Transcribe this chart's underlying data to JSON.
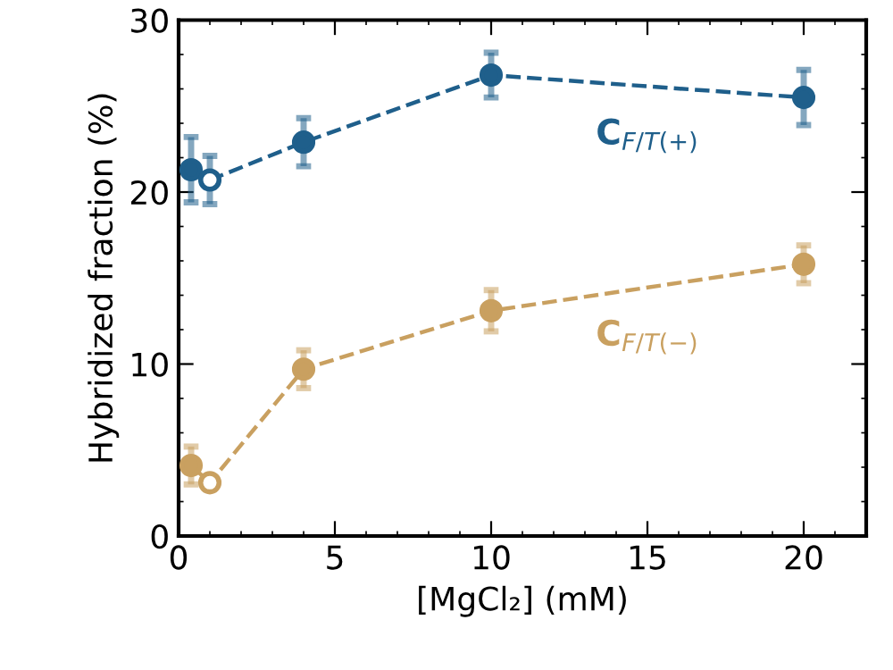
{
  "chart_data": {
    "type": "line",
    "xlabel": "[MgCl₂] (mM)",
    "ylabel": "Hybridized fraction (%)",
    "xlim": [
      0,
      22
    ],
    "xticks": [
      0,
      5,
      10,
      15,
      20
    ],
    "ylim": [
      0,
      30
    ],
    "yticks": [
      0,
      10,
      20,
      30
    ],
    "grid": false,
    "legend": false,
    "marker": "circle",
    "line_style": "dashed",
    "series": [
      {
        "name": "C$_{F/T(+)}$",
        "color": "#1f5f8b",
        "x": [
          0.4,
          1,
          4,
          10,
          20
        ],
        "values": [
          21.3,
          20.7,
          22.9,
          26.8,
          25.5
        ],
        "errors": [
          1.9,
          1.4,
          1.4,
          1.3,
          1.6
        ],
        "colors": [
          "#1f5f8b",
          "#ffffff",
          "#1f5f8b",
          "#1f5f8b",
          "#1f5f8b"
        ]
      },
      {
        "name": "C$_{F/T(−)}$",
        "color": "#c9a060",
        "x": [
          0.4,
          1,
          4,
          10,
          20
        ],
        "values": [
          4.1,
          3.1,
          9.7,
          13.1,
          15.8
        ],
        "errors": [
          1.1,
          null,
          1.1,
          1.2,
          1.1
        ],
        "colors": [
          "#c9a060",
          "#ffffff",
          "#c9a060",
          "#c9a060",
          "#c9a060"
        ]
      }
    ]
  }
}
